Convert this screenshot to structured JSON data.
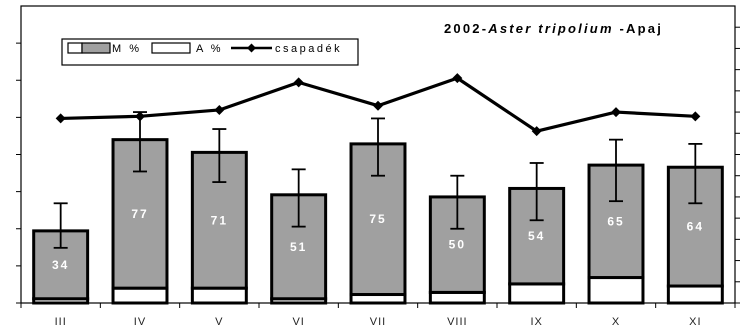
{
  "chart_data": {
    "type": "bar",
    "title_prefix": "2002-",
    "title_species": "Aster tripolium",
    "title_suffix": " -Apaj",
    "categories": [
      "III",
      "IV",
      "V",
      "VI",
      "VII",
      "VIII",
      "IX",
      "X",
      "XI"
    ],
    "series": [
      {
        "name": "M %",
        "type": "bar",
        "values": [
          34,
          77,
          71,
          51,
          75,
          50,
          54,
          65,
          64
        ],
        "color": "#a0a0a0"
      },
      {
        "name": "A %",
        "type": "bar",
        "values": [
          2,
          7,
          7,
          2,
          4,
          5,
          9,
          12,
          8
        ],
        "color": "#ffffff"
      },
      {
        "name": "csapadék",
        "type": "line",
        "values": [
          87,
          88,
          91,
          104,
          93,
          106,
          81,
          90,
          88
        ],
        "color": "#000000"
      }
    ],
    "error_bars": [
      [
        26,
        47
      ],
      [
        62,
        90
      ],
      [
        57,
        82
      ],
      [
        36,
        63
      ],
      [
        60,
        87
      ],
      [
        35,
        60
      ],
      [
        39,
        66
      ],
      [
        48,
        77
      ],
      [
        47,
        75
      ]
    ],
    "ylim_left": [
      0,
      140
    ],
    "ylim_right": [
      0,
      140
    ],
    "grid": false,
    "legend_position": "top-left",
    "xlabel": "",
    "ylabel": ""
  }
}
